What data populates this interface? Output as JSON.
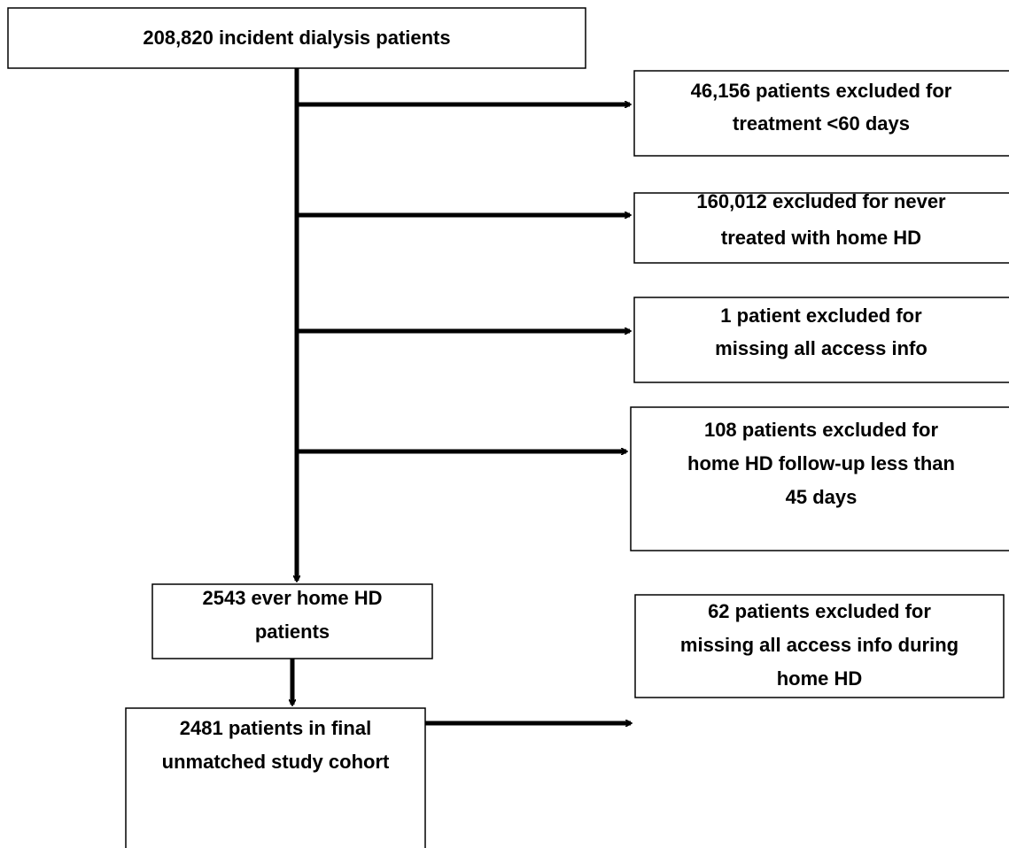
{
  "nodes": [
    {
      "lines": [
        "208,820 incident dialysis patients"
      ]
    },
    {
      "lines": [
        "46,156 patients excluded for",
        "treatment <60 days"
      ]
    },
    {
      "lines": [
        "160,012 excluded for never",
        "treated with home HD"
      ]
    },
    {
      "lines": [
        "1 patient excluded for",
        "missing all access info"
      ]
    },
    {
      "lines": [
        "108 patients excluded for",
        "home HD follow-up less than",
        "45 days"
      ]
    },
    {
      "lines": [
        "2543 ever home HD",
        "patients"
      ]
    },
    {
      "lines": [
        "62 patients excluded for",
        "missing all access info during",
        "home HD"
      ]
    },
    {
      "lines": [
        "2481 patients in final",
        "unmatched study cohort"
      ]
    }
  ]
}
